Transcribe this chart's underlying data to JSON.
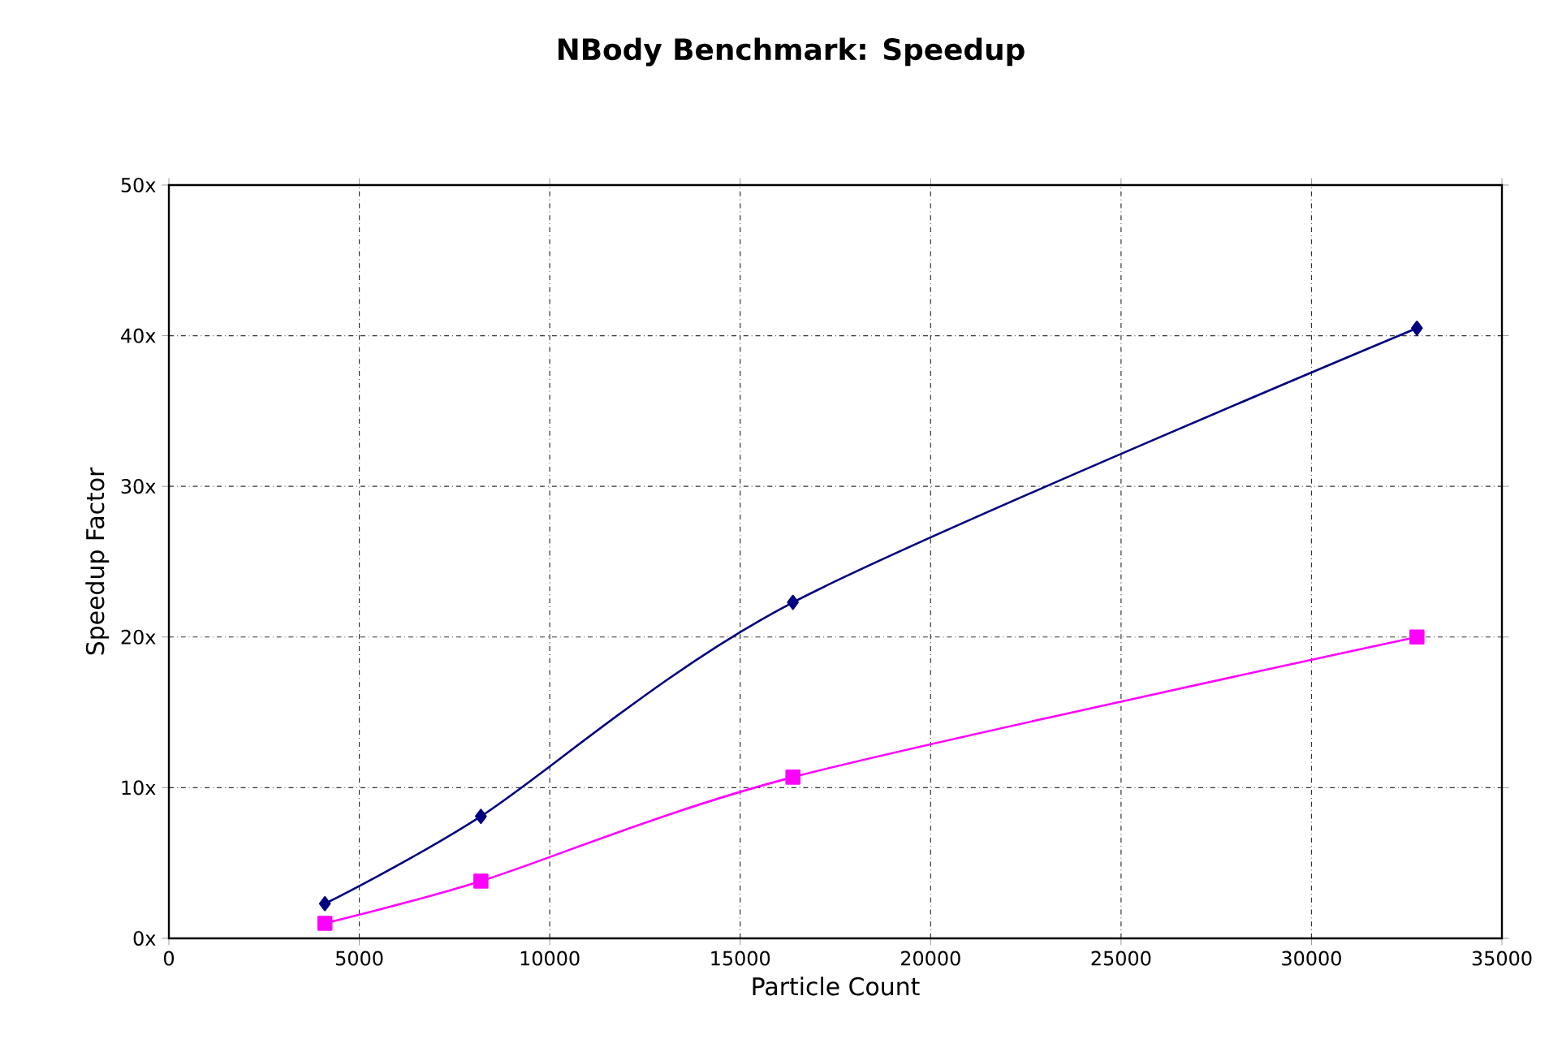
{
  "chart_data": {
    "type": "line",
    "title": "NBody Benchmark: Speedup",
    "xlabel": "Particle Count",
    "ylabel": "Speedup Factor",
    "x": [
      4096,
      8192,
      16384,
      32768
    ],
    "series": [
      {
        "color": "#000080",
        "marker": "diamond",
        "values": [
          2.3,
          8.1,
          22.3,
          40.5
        ]
      },
      {
        "color": "#ff00ff",
        "marker": "square",
        "values": [
          1.0,
          3.8,
          10.7,
          20.0
        ]
      }
    ],
    "xlim": [
      0,
      35000
    ],
    "xticks": [
      0,
      5000,
      10000,
      15000,
      20000,
      25000,
      30000,
      35000
    ],
    "ylim": [
      0,
      50
    ],
    "yticks": [
      {
        "value": 0,
        "label": "0x"
      },
      {
        "value": 10,
        "label": "10x"
      },
      {
        "value": 20,
        "label": "20x"
      },
      {
        "value": 30,
        "label": "30x"
      },
      {
        "value": 40,
        "label": "40x"
      },
      {
        "value": 50,
        "label": "50x"
      }
    ],
    "grid": true,
    "line_style": "solid"
  }
}
